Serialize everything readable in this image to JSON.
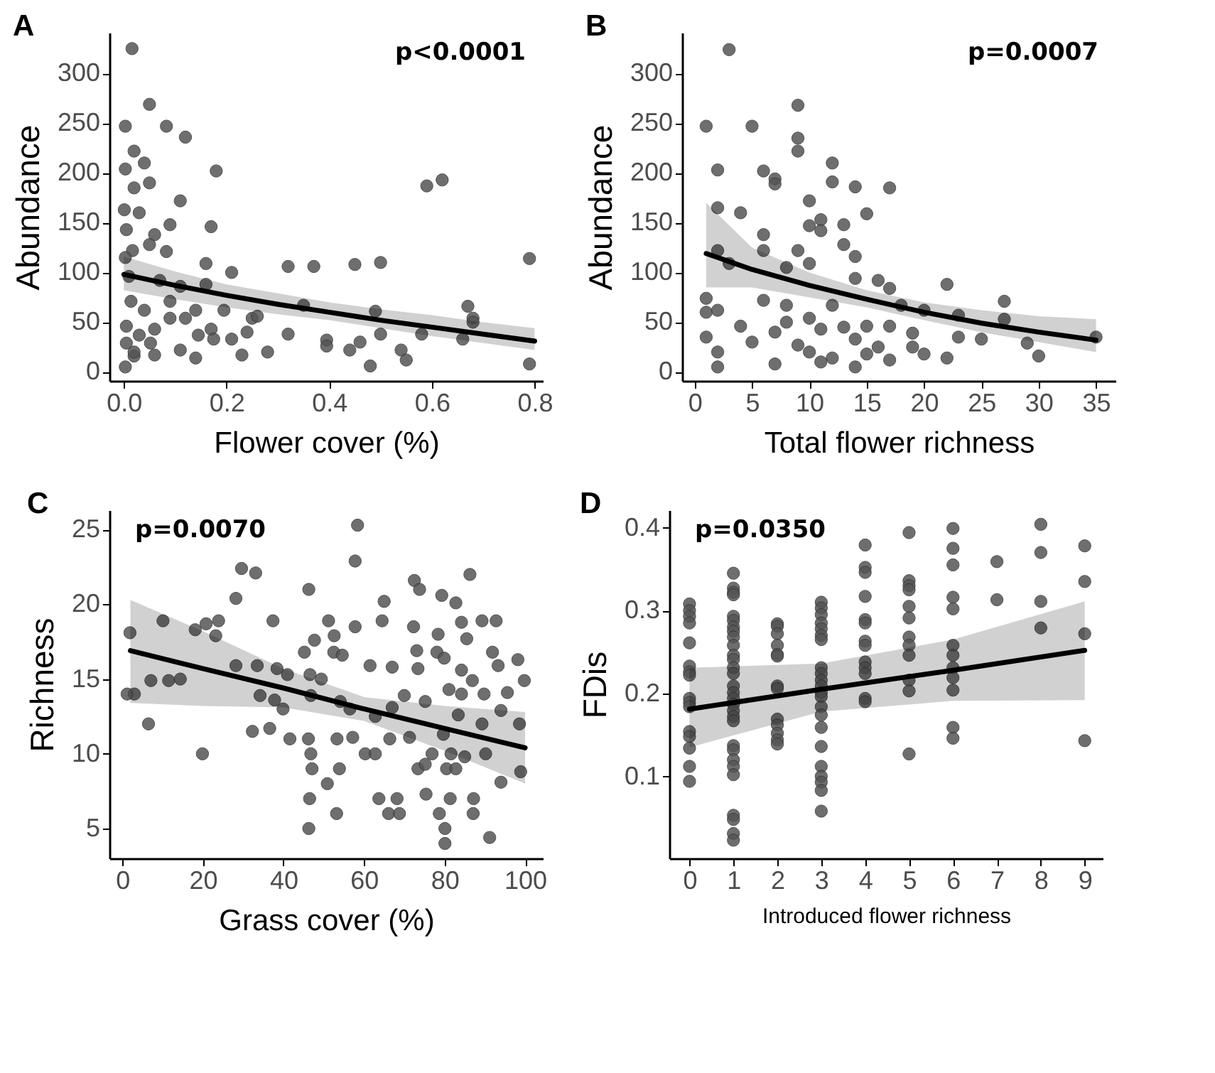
{
  "chart_data": [
    {
      "type": "scatter",
      "title": "A",
      "xlabel": "Flower cover (%)",
      "ylabel": "Abundance",
      "xlim": [
        -0.028,
        0.816
      ],
      "xticks": [
        {
          "value": 0,
          "label": "0.0"
        },
        0.2,
        0.4,
        0.6,
        0.8
      ],
      "ylim": [
        -9,
        341
      ],
      "yticks": [
        0,
        50,
        100,
        150,
        200,
        250,
        300
      ],
      "annotations": [
        "p<0.0001"
      ],
      "series": [
        {
          "type": "scatter",
          "marker": "circle",
          "color": "#555555",
          "x": [
            0.016,
            0.003,
            0.05,
            0.083,
            0.12,
            0.02,
            0.003,
            0.04,
            0.18,
            0.59,
            0.62,
            0.05,
            0.02,
            0.001,
            0.03,
            0.11,
            0.09,
            0.17,
            0.005,
            0.06,
            0.05,
            0.083,
            0.017,
            0.003,
            0.16,
            0.21,
            0.32,
            0.37,
            0.45,
            0.5,
            0.79,
            0.01,
            0.16,
            0.11,
            0.35,
            0.67,
            0.49,
            0.68,
            0.68,
            0.195,
            0.24,
            0.32,
            0.5,
            0.58,
            0.66,
            0.395,
            0.395,
            0.46,
            0.44,
            0.54,
            0.55,
            0.48,
            0.79,
            0.28,
            0.23,
            0.14,
            0.11,
            0.003,
            0.02,
            0.06,
            0.014,
            0.04,
            0.005,
            0.03,
            0.06,
            0.09,
            0.12,
            0.145,
            0.17,
            0.21,
            0.07,
            0.005,
            0.02,
            0.052,
            0.09,
            0.14,
            0.175,
            0.25,
            0.26
          ],
          "values": [
            325,
            247,
            269,
            247,
            236,
            222,
            204,
            210,
            202,
            187,
            193,
            190,
            185,
            163,
            160,
            172,
            148,
            146,
            143,
            138,
            128,
            121,
            122,
            115,
            109,
            100,
            106,
            106,
            108,
            110,
            114,
            96,
            88,
            86,
            67,
            66,
            61,
            54,
            50,
            62,
            40,
            38,
            38,
            38,
            33,
            32,
            26,
            30,
            22,
            22,
            12,
            6,
            8,
            20,
            17,
            14,
            22,
            5,
            16,
            17,
            71,
            62,
            46,
            37,
            43,
            71,
            54,
            37,
            43,
            33,
            92,
            29,
            20,
            29,
            54,
            62,
            33,
            54,
            56
          ]
        },
        {
          "type": "line",
          "color": "#000000",
          "x": [
            0,
            0.1,
            0.2,
            0.3,
            0.4,
            0.5,
            0.6,
            0.7,
            0.8
          ],
          "values": [
            98,
            87,
            77,
            68,
            60,
            52,
            45,
            38,
            31
          ],
          "lower": [
            82,
            73,
            65,
            58,
            52,
            44,
            36,
            29,
            22
          ],
          "upper": [
            116,
            101,
            88,
            79,
            70,
            63,
            57,
            50,
            44
          ]
        }
      ]
    },
    {
      "type": "scatter",
      "title": "B",
      "xlabel": "Total flower richness",
      "ylabel": "Abundance",
      "xlim": [
        -1.1,
        36.7
      ],
      "xticks": [
        0,
        5,
        10,
        15,
        20,
        25,
        30,
        35
      ],
      "ylim": [
        -9,
        341
      ],
      "yticks": [
        0,
        50,
        100,
        150,
        200,
        250,
        300
      ],
      "annotations": [
        "p=0.0007"
      ],
      "series": [
        {
          "type": "scatter",
          "marker": "circle",
          "color": "#555555",
          "x": [
            3,
            1,
            9,
            5,
            9,
            9,
            2,
            6,
            7,
            7,
            12,
            12,
            14,
            17,
            10,
            15,
            2,
            4,
            11,
            11,
            10,
            13,
            6,
            13,
            14,
            2,
            6,
            9,
            3,
            8,
            10,
            14,
            16,
            17,
            22,
            1,
            6,
            8,
            12,
            18,
            27,
            27,
            23,
            20,
            1,
            2,
            4,
            7,
            11,
            13,
            15,
            17,
            19,
            25,
            29,
            30,
            35,
            1,
            2,
            2,
            5,
            7,
            11,
            12,
            14,
            15,
            17,
            20,
            22,
            23,
            9,
            10,
            8,
            10,
            16,
            19,
            14
          ],
          "values": [
            324,
            247,
            268,
            247,
            235,
            222,
            203,
            202,
            194,
            189,
            210,
            191,
            186,
            185,
            172,
            159,
            165,
            160,
            153,
            142,
            147,
            148,
            138,
            128,
            116,
            122,
            122,
            122,
            109,
            105,
            109,
            94,
            92,
            84,
            88,
            74,
            72,
            67,
            67,
            67,
            71,
            53,
            57,
            62,
            60,
            62,
            46,
            40,
            43,
            45,
            46,
            46,
            39,
            33,
            29,
            16,
            35,
            35,
            20,
            5,
            30,
            8,
            10,
            14,
            5,
            18,
            12,
            18,
            14,
            35,
            27,
            20,
            50,
            54,
            25,
            25,
            33
          ]
        },
        {
          "type": "line",
          "color": "#000000",
          "x": [
            1,
            5,
            10,
            15,
            20,
            25,
            30,
            35
          ],
          "values": [
            119,
            103,
            87,
            73,
            60,
            49,
            40,
            32
          ],
          "lower": [
            85,
            85,
            75,
            65,
            52,
            40,
            30,
            20
          ],
          "upper": [
            170,
            125,
            100,
            82,
            70,
            62,
            56,
            53
          ]
        }
      ]
    },
    {
      "type": "scatter",
      "title": "C",
      "xlabel": "Grass cover (%)",
      "ylabel": "Richness",
      "xlim": [
        -3.2,
        104.4
      ],
      "xticks": [
        0,
        20,
        40,
        60,
        80,
        100
      ],
      "ylim": [
        3,
        26.3
      ],
      "yticks": [
        5,
        10,
        15,
        20,
        25
      ],
      "annotations": [
        "p=0.0070"
      ],
      "series": [
        {
          "type": "scatter",
          "marker": "circle",
          "color": "#555555",
          "x": [
            58.4,
            57.8,
            29.6,
            33.1,
            46.3,
            72.5,
            73.8,
            86.3,
            28.2,
            65,
            79.3,
            82.8,
            10.1,
            18.1,
            20.8,
            23.9,
            23.2,
            1.9,
            37.4,
            51.2,
            52.6,
            57.8,
            64.5,
            72.3,
            78.4,
            84.2,
            89.3,
            92.8,
            85.5,
            47.7,
            45.2,
            52.5,
            54.6,
            73.1,
            78.1,
            91.9,
            79.9,
            28.2,
            33.5,
            38.4,
            41,
            46.6,
            49.4,
            61.5,
            67,
            73.4,
            84.2,
            93.3,
            98.2,
            99.8,
            86.9,
            1.2,
            3,
            7.1,
            11.5,
            14.4,
            34.2,
            37.8,
            39.9,
            46.8,
            54.1,
            56.5,
            62.8,
            67,
            70,
            75.2,
            81.1,
            84.2,
            89.8,
            95.6,
            94,
            98.6,
            89.3,
            83.4,
            6.5,
            32.3,
            36.6,
            41.6,
            46.2,
            53.3,
            57.2,
            66.4,
            71.3,
            79.7,
            19.9,
            60.3,
            62.8,
            76.9,
            81.6,
            90.2,
            85,
            46.8,
            47.1,
            53.9,
            73.4,
            75.2,
            80.5,
            82.8,
            98.9,
            94,
            50.9,
            46.5,
            63.7,
            68.2,
            75.4,
            81.4,
            87.2,
            66.1,
            68.8,
            78.7,
            87.1,
            53.2,
            46.3,
            80.1,
            80.1,
            91.2
          ],
          "values": [
            25.3,
            22.9,
            22.4,
            22.1,
            21,
            21.6,
            21,
            22,
            20.4,
            20.2,
            20.6,
            20.1,
            18.9,
            18.3,
            18.7,
            18.9,
            17.9,
            18.1,
            18.9,
            18.9,
            17.9,
            18.5,
            18.9,
            18.5,
            18,
            18.8,
            18.9,
            18.9,
            17.7,
            17.6,
            16.8,
            16.8,
            16.6,
            16.9,
            16.8,
            16.8,
            16.4,
            15.9,
            15.9,
            15.7,
            15.3,
            15.3,
            15,
            15.9,
            15.8,
            15.7,
            15.6,
            15.9,
            16.3,
            14.9,
            14.9,
            14,
            14,
            14.9,
            14.9,
            15,
            13.9,
            13.6,
            13,
            13.9,
            13.5,
            13,
            12.5,
            13.1,
            13.9,
            13.5,
            14.3,
            14,
            14,
            14.1,
            12.9,
            12,
            12,
            12.6,
            12,
            11.5,
            11.7,
            11,
            11,
            11,
            11.1,
            11,
            11.1,
            11.3,
            10,
            10,
            10,
            10,
            10,
            10,
            9.8,
            10,
            9,
            9,
            9,
            9.3,
            9,
            9,
            8.8,
            8.1,
            8,
            7,
            7,
            7,
            7.3,
            7,
            7,
            6,
            6,
            6,
            6,
            6,
            5,
            5,
            4,
            4.4
          ]
        },
        {
          "type": "line",
          "color": "#000000",
          "x": [
            2,
            20,
            40,
            60,
            80,
            100
          ],
          "values": [
            16.9,
            15.7,
            14.4,
            13,
            11.7,
            10.4
          ],
          "lower": [
            13.4,
            13.2,
            13.1,
            12.2,
            10.2,
            8
          ],
          "upper": [
            20.3,
            18.2,
            15.7,
            13.8,
            13.2,
            12.8
          ]
        }
      ]
    },
    {
      "type": "scatter",
      "title": "D",
      "xlabel": "Introduced flower richness",
      "ylabel": "FDis",
      "xlim": [
        -0.46,
        9.41
      ],
      "xticks": [
        0,
        1,
        2,
        3,
        4,
        5,
        6,
        7,
        8,
        9
      ],
      "ylim": [
        0.001,
        0.421
      ],
      "yticks": [
        0.1,
        0.2,
        0.3,
        0.4
      ],
      "annotations": [
        "p=0.0350"
      ],
      "series": [
        {
          "type": "scatter",
          "marker": "circle",
          "color": "#555555",
          "x": [
            0,
            0,
            0,
            0,
            0,
            0,
            0,
            0,
            0,
            0,
            0,
            0,
            0,
            0,
            0,
            0,
            1,
            1,
            1,
            1,
            1,
            1,
            1,
            1,
            1,
            1,
            1,
            1,
            1,
            1,
            1,
            1,
            1,
            1,
            1,
            1,
            1,
            1,
            1,
            1,
            1,
            1,
            1,
            1,
            1,
            1,
            2,
            2,
            2,
            2,
            2,
            2,
            2,
            2,
            2,
            2,
            2,
            2,
            2,
            3,
            3,
            3,
            3,
            3,
            3,
            3,
            3,
            3,
            3,
            3,
            3,
            3,
            3,
            3,
            3,
            3,
            3,
            3,
            3,
            3,
            3,
            4,
            4,
            4,
            4,
            4,
            4,
            4,
            4,
            4,
            4,
            4,
            4,
            4,
            5,
            5,
            5,
            5,
            5,
            5,
            5,
            5,
            5,
            5,
            5,
            5,
            6,
            6,
            6,
            6,
            6,
            6,
            6,
            6,
            6,
            6,
            6,
            6,
            7,
            7,
            8,
            8,
            8,
            8,
            9,
            9,
            9,
            9
          ],
          "values": [
            0.308,
            0.3,
            0.293,
            0.285,
            0.261,
            0.233,
            0.226,
            0.222,
            0.194,
            0.189,
            0.184,
            0.154,
            0.148,
            0.134,
            0.112,
            0.094,
            0.345,
            0.327,
            0.322,
            0.319,
            0.293,
            0.288,
            0.28,
            0.275,
            0.268,
            0.258,
            0.246,
            0.241,
            0.231,
            0.224,
            0.209,
            0.201,
            0.194,
            0.187,
            0.179,
            0.172,
            0.167,
            0.137,
            0.132,
            0.12,
            0.112,
            0.102,
            0.053,
            0.048,
            0.031,
            0.023,
            0.284,
            0.281,
            0.272,
            0.258,
            0.247,
            0.245,
            0.209,
            0.206,
            0.169,
            0.162,
            0.152,
            0.144,
            0.139,
            0.31,
            0.303,
            0.295,
            0.285,
            0.278,
            0.27,
            0.265,
            0.231,
            0.224,
            0.216,
            0.209,
            0.201,
            0.196,
            0.184,
            0.174,
            0.159,
            0.136,
            0.112,
            0.1,
            0.093,
            0.083,
            0.058,
            0.379,
            0.352,
            0.346,
            0.317,
            0.289,
            0.285,
            0.263,
            0.258,
            0.238,
            0.231,
            0.224,
            0.194,
            0.19,
            0.394,
            0.336,
            0.33,
            0.325,
            0.305,
            0.291,
            0.268,
            0.258,
            0.246,
            0.216,
            0.203,
            0.127,
            0.399,
            0.375,
            0.355,
            0.316,
            0.302,
            0.258,
            0.246,
            0.231,
            0.219,
            0.204,
            0.159,
            0.146,
            0.359,
            0.313,
            0.404,
            0.37,
            0.311,
            0.279,
            0.378,
            0.335,
            0.272,
            0.143
          ]
        },
        {
          "type": "line",
          "color": "#000000",
          "x": [
            0,
            3,
            6,
            9
          ],
          "values": [
            0.181,
            0.205,
            0.228,
            0.252
          ],
          "lower": [
            0.135,
            0.178,
            0.191,
            0.192
          ],
          "upper": [
            0.231,
            0.236,
            0.265,
            0.311
          ]
        }
      ]
    }
  ]
}
